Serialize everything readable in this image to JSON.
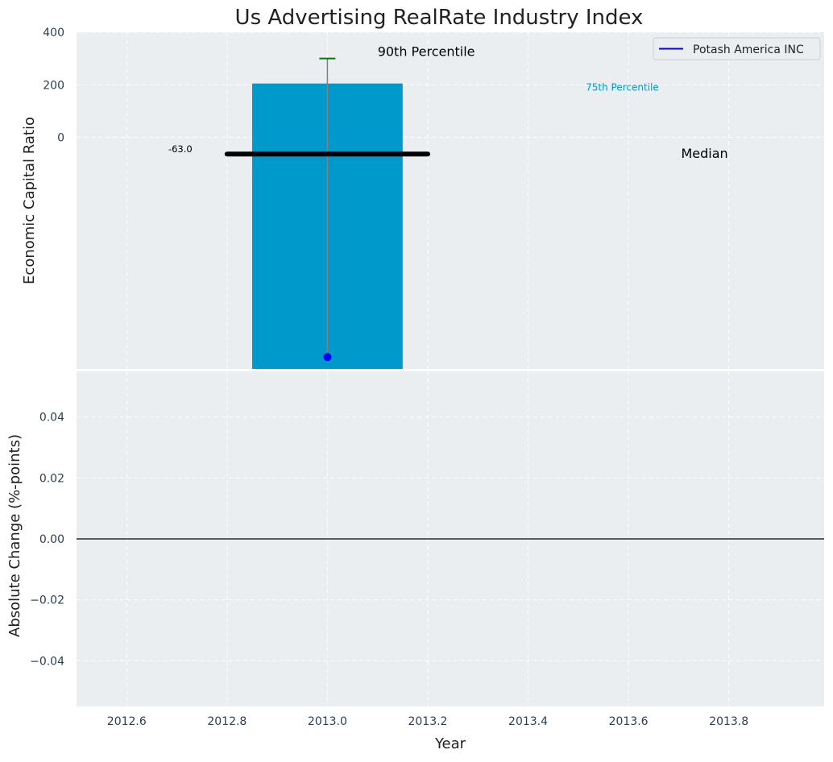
{
  "chart_data": {
    "type": "bar",
    "title": "Us Advertising RealRate Industry Index",
    "xlabel": "Year",
    "x_ticks": [
      "2012.6",
      "2012.8",
      "2013.0",
      "2013.2",
      "2013.4",
      "2013.6",
      "2013.8"
    ],
    "xlim": [
      2012.5,
      2013.99
    ],
    "grid": true,
    "colors": {
      "background": "#eaeef0",
      "bar": "#0099cc",
      "median": "#000000",
      "p90": "#008000",
      "company": "#0000ff",
      "whisker": "#808080",
      "p75_text": "#0099cc"
    },
    "top_panel": {
      "ylabel": "Economic Capital Ratio",
      "y_ticks": [
        "400",
        "200",
        "0"
      ],
      "ylim": [
        -880,
        400
      ],
      "bar": {
        "x": 2013.0,
        "bottom": -880,
        "top": 205,
        "width": 0.3
      },
      "percentile_90": 300,
      "median": -63.0,
      "median_label": "-63.0",
      "company_value": -835,
      "annotations": {
        "p90": "90th Percentile",
        "p75": "75th Percentile",
        "median": "Median"
      },
      "legend": {
        "position": "top-right",
        "entries": [
          "Potash America INC"
        ]
      }
    },
    "bottom_panel": {
      "ylabel": "Absolute Change (%-points)",
      "y_ticks": [
        "0.04",
        "0.02",
        "0.00",
        "−0.02",
        "−0.04"
      ],
      "ylim": [
        -0.055,
        0.055
      ],
      "zero_line": 0.0
    }
  }
}
